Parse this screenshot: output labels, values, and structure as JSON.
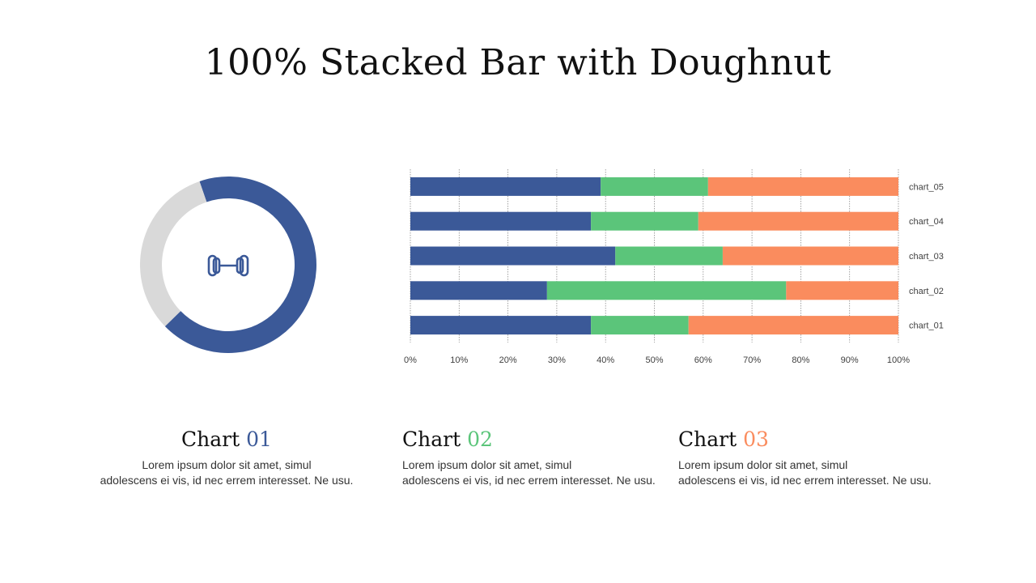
{
  "title": "100% Stacked Bar with Doughnut",
  "chart_data": [
    {
      "type": "doughnut",
      "values": [
        68,
        32
      ],
      "colors": [
        "#3b5998",
        "#d9d9d9"
      ],
      "icon": "dumbbell-icon"
    },
    {
      "type": "bar",
      "orientation": "horizontal",
      "stacked": "100%",
      "categories": [
        "chart_01",
        "chart_02",
        "chart_03",
        "chart_04",
        "chart_05"
      ],
      "series": [
        {
          "values": [
            37,
            28,
            42,
            37,
            39
          ],
          "color": "#3b5998"
        },
        {
          "values": [
            20,
            49,
            22,
            22,
            22
          ],
          "color": "#5bc57a"
        },
        {
          "values": [
            43,
            23,
            36,
            41,
            39
          ],
          "color": "#fa8c5e"
        }
      ],
      "xticks": [
        "0%",
        "10%",
        "20%",
        "30%",
        "40%",
        "50%",
        "60%",
        "70%",
        "80%",
        "90%",
        "100%"
      ],
      "xlim": [
        0,
        100
      ],
      "grid": true
    }
  ],
  "blocks": [
    {
      "label": "Chart ",
      "num": "01",
      "color": "#3b5998",
      "line1": "Lorem ipsum dolor sit amet, simul",
      "line2": "adolescens ei vis, id nec errem  interesset. Ne usu."
    },
    {
      "label": "Chart ",
      "num": "02",
      "color": "#5bc57a",
      "line1": "Lorem ipsum dolor sit amet, simul",
      "line2": "adolescens ei vis, id nec errem  interesset. Ne usu."
    },
    {
      "label": "Chart ",
      "num": "03",
      "color": "#fa8c5e",
      "line1": "Lorem ipsum dolor sit amet, simul",
      "line2": "adolescens ei vis, id nec errem  interesset. Ne usu."
    }
  ]
}
